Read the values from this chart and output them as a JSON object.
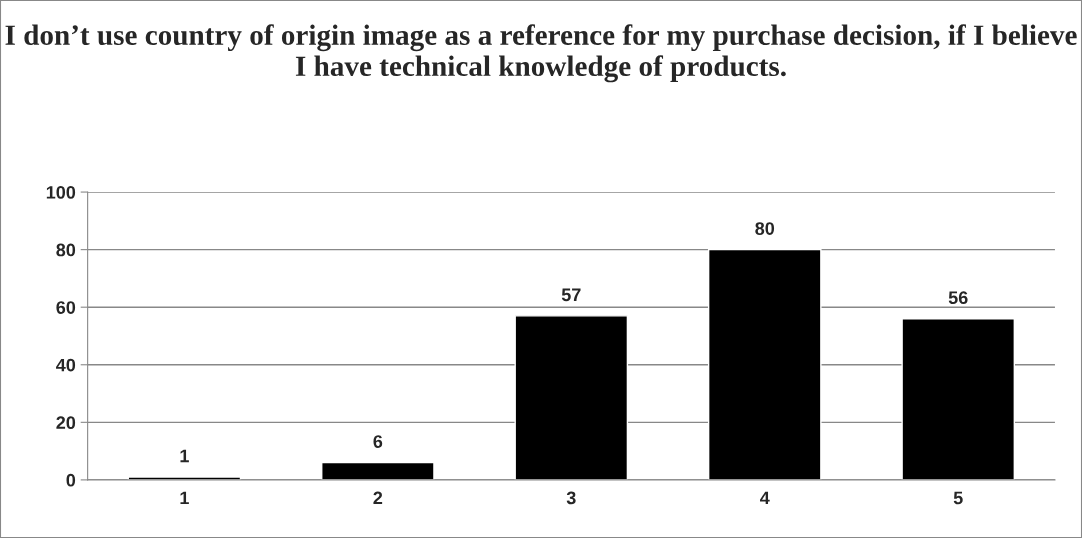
{
  "chart_data": {
    "type": "bar",
    "title": "I don’t use country of origin image as a reference for my purchase decision, if I believe I have technical knowledge of products.",
    "categories": [
      "1",
      "2",
      "3",
      "4",
      "5"
    ],
    "values": [
      1,
      6,
      57,
      80,
      56
    ],
    "color": "#000000",
    "ylim": [
      0,
      100
    ],
    "yticks": [
      0,
      20,
      40,
      60,
      80,
      100
    ],
    "grid": "y",
    "data_labels": true
  }
}
